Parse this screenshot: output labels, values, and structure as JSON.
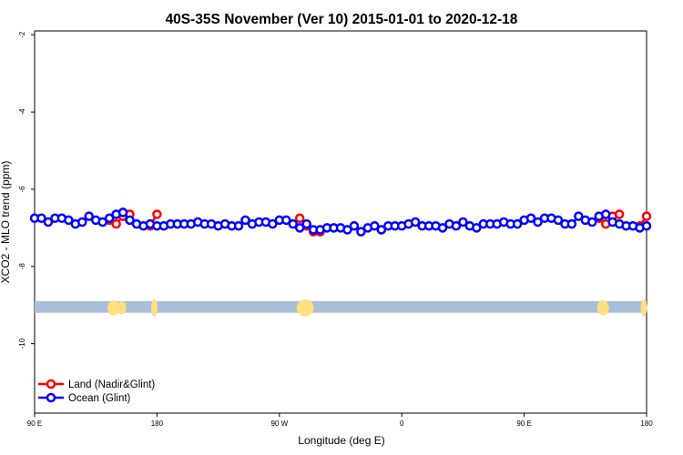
{
  "chart_data": {
    "type": "line",
    "title": "40S-35S November (Ver 10)   2015-01-01 to 2020-12-18",
    "xlabel": "Longitude (deg E)",
    "ylabel": "XCO2 - MLO trend (ppm)",
    "ylim": [
      -11.8,
      -1.9
    ],
    "yticks": [
      -2,
      -4,
      -6,
      -8,
      -10
    ],
    "x_ticks": [
      {
        "value": 90,
        "label": "90 E"
      },
      {
        "value": 180,
        "label": "180"
      },
      {
        "value": 270,
        "label": "90 W"
      },
      {
        "value": 360,
        "label": "0"
      },
      {
        "value": 450,
        "label": "90 E"
      },
      {
        "value": 540,
        "label": "180"
      }
    ],
    "xlim": [
      90,
      540
    ],
    "land_band": {
      "y_top": -8.9,
      "y_bottom": -9.2,
      "ocean_color": "#a8bedb",
      "land_color": "#ffdf80"
    },
    "series": [
      {
        "name": "Land (Nadir&Glint)",
        "color": "#ff0000",
        "segments": [
          [
            [
              145,
              -6.8
            ],
            [
              150,
              -6.9
            ],
            [
              155,
              -6.7
            ],
            [
              160,
              -6.65
            ]
          ],
          [
            [
              175,
              -6.95
            ],
            [
              180,
              -6.65
            ]
          ],
          [
            [
              285,
              -6.75
            ],
            [
              290,
              -6.95
            ],
            [
              295,
              -7.1
            ],
            [
              300,
              -7.1
            ]
          ],
          [
            [
              505,
              -6.75
            ],
            [
              510,
              -6.9
            ],
            [
              515,
              -6.7
            ],
            [
              520,
              -6.65
            ]
          ],
          [
            [
              535,
              -6.95
            ],
            [
              540,
              -6.7
            ]
          ]
        ]
      },
      {
        "name": "Ocean (Glint)",
        "color": "#0000ff",
        "x": [
          90,
          95,
          100,
          105,
          110,
          115,
          120,
          125,
          130,
          135,
          140,
          145,
          150,
          155,
          160,
          165,
          170,
          175,
          180,
          185,
          190,
          195,
          200,
          205,
          210,
          215,
          220,
          225,
          230,
          235,
          240,
          245,
          250,
          255,
          260,
          265,
          270,
          275,
          280,
          285,
          290,
          295,
          300,
          305,
          310,
          315,
          320,
          325,
          330,
          335,
          340,
          345,
          350,
          355,
          360,
          365,
          370,
          375,
          380,
          385,
          390,
          395,
          400,
          405,
          410,
          415,
          420,
          425,
          430,
          435,
          440,
          445,
          450,
          455,
          460,
          465,
          470,
          475,
          480,
          485,
          490,
          495,
          500,
          505,
          510,
          515,
          520,
          525,
          530,
          535,
          540
        ],
        "values": [
          -6.75,
          -6.75,
          -6.85,
          -6.75,
          -6.75,
          -6.8,
          -6.9,
          -6.85,
          -6.7,
          -6.8,
          -6.85,
          -6.75,
          -6.65,
          -6.6,
          -6.8,
          -6.9,
          -6.95,
          -6.9,
          -6.95,
          -6.95,
          -6.9,
          -6.9,
          -6.9,
          -6.9,
          -6.85,
          -6.9,
          -6.9,
          -6.95,
          -6.9,
          -6.95,
          -6.95,
          -6.8,
          -6.9,
          -6.85,
          -6.85,
          -6.9,
          -6.8,
          -6.8,
          -6.9,
          -7.0,
          -6.9,
          -7.05,
          -7.05,
          -7.0,
          -7.0,
          -7.0,
          -7.05,
          -6.95,
          -7.1,
          -7.0,
          -6.95,
          -7.05,
          -6.95,
          -6.95,
          -6.95,
          -6.9,
          -6.85,
          -6.95,
          -6.95,
          -6.95,
          -7.0,
          -6.9,
          -6.95,
          -6.85,
          -6.95,
          -7.0,
          -6.9,
          -6.9,
          -6.9,
          -6.85,
          -6.9,
          -6.9,
          -6.8,
          -6.75,
          -6.85,
          -6.75,
          -6.75,
          -6.8,
          -6.9,
          -6.9,
          -6.7,
          -6.8,
          -6.85,
          -6.7,
          -6.65,
          -6.85,
          -6.9,
          -6.95,
          -6.95,
          -7.0,
          -6.95
        ]
      }
    ],
    "legend_position": "bottom-left"
  }
}
